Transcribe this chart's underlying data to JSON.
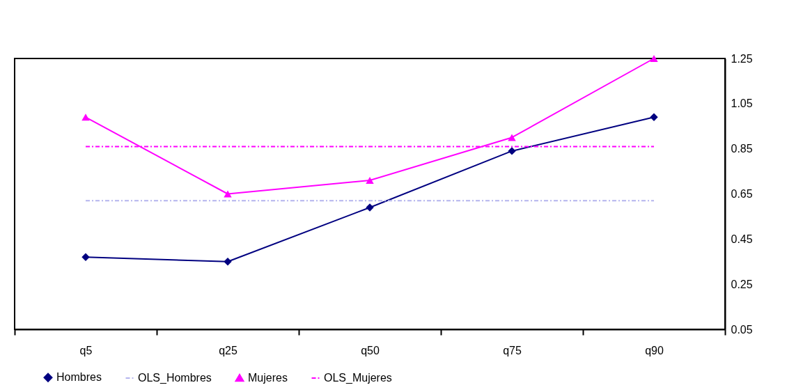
{
  "chart_data": {
    "type": "line",
    "categories": [
      "q5",
      "q25",
      "q50",
      "q75",
      "q90"
    ],
    "series": [
      {
        "name": "Hombres",
        "color": "#000080",
        "marker": "diamond",
        "line_style": "solid",
        "values": [
          0.37,
          0.35,
          0.59,
          0.84,
          0.99
        ]
      },
      {
        "name": "OLS_Hombres",
        "color": "#b4b4ee",
        "marker": "none",
        "line_style": "dashed",
        "values": [
          0.62,
          0.62,
          0.62,
          0.62,
          0.62
        ]
      },
      {
        "name": "Mujeres",
        "color": "#ff00ff",
        "marker": "triangle",
        "line_style": "solid",
        "values": [
          0.99,
          0.65,
          0.71,
          0.9,
          1.25
        ]
      },
      {
        "name": "OLS_Mujeres",
        "color": "#ff00ff",
        "marker": "none",
        "line_style": "dashed",
        "values": [
          0.86,
          0.86,
          0.86,
          0.86,
          0.86
        ]
      }
    ],
    "ylim": [
      0.05,
      1.25
    ],
    "yticks": [
      0.05,
      0.25,
      0.45,
      0.65,
      0.85,
      1.05,
      1.25
    ],
    "grid": false,
    "legend": "bottom"
  }
}
